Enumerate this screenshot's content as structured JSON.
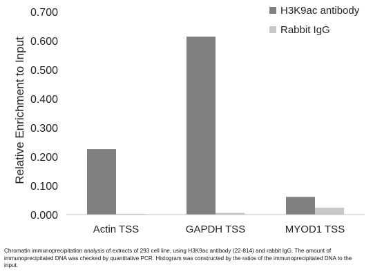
{
  "chart_data": {
    "type": "bar",
    "categories": [
      "Actin TSS",
      "GAPDH TSS",
      "MYOD1 TSS"
    ],
    "series": [
      {
        "name": "H3K9ac antibody",
        "values": [
          0.226,
          0.614,
          0.061
        ],
        "color": "#808080"
      },
      {
        "name": "Rabbit IgG",
        "values": [
          0.002,
          0.006,
          0.024
        ],
        "color": "#c8c8c8"
      }
    ],
    "title": "",
    "xlabel": "",
    "ylabel": "Relative Enrichment to Input",
    "ylim": [
      0,
      0.7
    ],
    "yticks": [
      "0.000",
      "0.100",
      "0.200",
      "0.300",
      "0.400",
      "0.500",
      "0.600",
      "0.700"
    ],
    "grid": false,
    "legend_position": "top-right"
  },
  "caption": "Chromatin immunoprecipitation analysis of extracts of 293 cell line, using H3K9ac antibody (22-814) and rabbit IgG. The amount of immunoprecipitated DNA was checked by quantitative PCR. Histogram was constructed by the ratios of the immunoprecipitated DNA to the input."
}
